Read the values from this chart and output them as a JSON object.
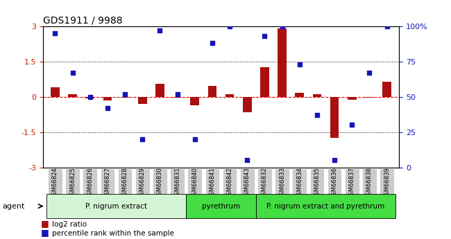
{
  "title": "GDS1911 / 9988",
  "samples": [
    "GSM66824",
    "GSM66825",
    "GSM66826",
    "GSM66827",
    "GSM66828",
    "GSM66829",
    "GSM66830",
    "GSM66831",
    "GSM66840",
    "GSM66841",
    "GSM66842",
    "GSM66843",
    "GSM66832",
    "GSM66833",
    "GSM66834",
    "GSM66835",
    "GSM66836",
    "GSM66837",
    "GSM66838",
    "GSM66839"
  ],
  "log2_ratio": [
    0.4,
    0.1,
    -0.08,
    -0.15,
    -0.05,
    -0.3,
    0.55,
    -0.05,
    -0.35,
    0.45,
    0.1,
    -0.65,
    1.25,
    2.9,
    0.18,
    0.1,
    -1.75,
    -0.12,
    -0.05,
    0.65
  ],
  "pct_rank": [
    95,
    67,
    50,
    42,
    52,
    20,
    97,
    52,
    20,
    88,
    100,
    5,
    93,
    100,
    73,
    37,
    5,
    30,
    67,
    100
  ],
  "bar_color": "#aa1010",
  "dot_color": "#1515bb",
  "ylim": [
    -3,
    3
  ],
  "y2lim": [
    0,
    100
  ],
  "yticks": [
    -3,
    -1.5,
    0,
    1.5,
    3
  ],
  "y2ticks": [
    0,
    25,
    50,
    75,
    100
  ],
  "groups": [
    {
      "label": "P. nigrum extract",
      "start": 0,
      "end": 8
    },
    {
      "label": "pyrethrum",
      "start": 8,
      "end": 12
    },
    {
      "label": "P. nigrum extract and pyrethrum",
      "start": 12,
      "end": 20
    }
  ],
  "group_colors": [
    "#d4f5d4",
    "#44dd44",
    "#44dd44"
  ],
  "agent_label": "agent",
  "legend_bar_label": "log2 ratio",
  "legend_dot_label": "percentile rank within the sample",
  "bg_color": "#ffffff",
  "plot_bg": "#ffffff",
  "hline_color": "#ff0000",
  "dotted_color": "#000000",
  "bar_width": 0.5,
  "xtick_bg": "#cccccc"
}
